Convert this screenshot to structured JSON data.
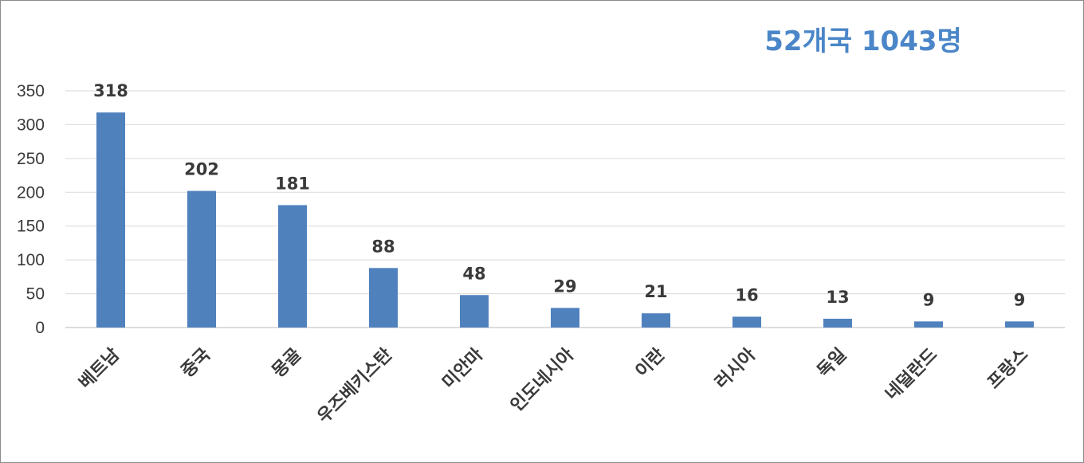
{
  "chart_data": {
    "type": "bar",
    "title": "",
    "annotation": "52개국 1043명",
    "xlabel": "",
    "ylabel": "",
    "categories": [
      "베트남",
      "중국",
      "몽골",
      "우즈베키스탄",
      "미안마",
      "인도네시아",
      "이란",
      "러시아",
      "독일",
      "네덜란드",
      "프랑스"
    ],
    "values": [
      318,
      202,
      181,
      88,
      48,
      29,
      21,
      16,
      13,
      9,
      9
    ],
    "ylim": [
      0,
      350
    ],
    "yticks": [
      0,
      50,
      100,
      150,
      200,
      250,
      300,
      350
    ],
    "grid": true,
    "legend": "none",
    "colors": {
      "bar": "#4f81bd",
      "annotation": "#4a86c8"
    }
  }
}
